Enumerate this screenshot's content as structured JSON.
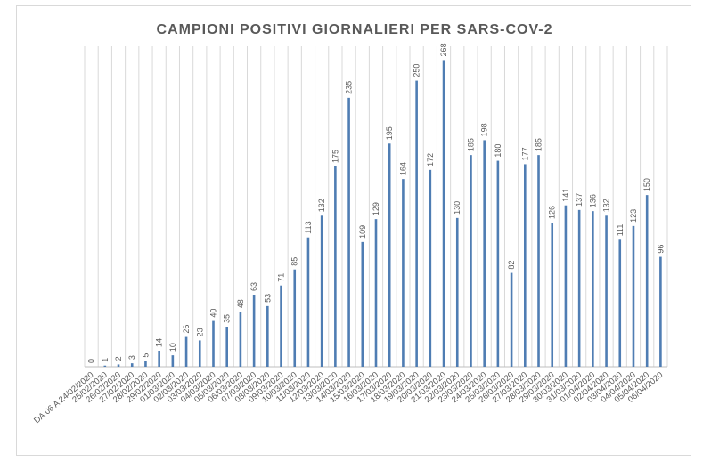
{
  "chart_data": {
    "type": "bar",
    "title": "CAMPIONI POSITIVI GIORNALIERI PER SARS-COV-2",
    "xlabel": "",
    "ylabel": "",
    "ylim": [
      0,
      280
    ],
    "grid": "vertical",
    "colors": {
      "bar": "#4f7db3",
      "grid": "#d9d9d9",
      "text": "#595959"
    },
    "categories": [
      "DA 06 A 24/02/2020",
      "25/02/2020",
      "26/02/2020",
      "27/02/2020",
      "28/02/2020",
      "29/02/2020",
      "01/03/2020",
      "02/03/2020",
      "03/03/2020",
      "04/03/2020",
      "05/03/2020",
      "06/03/2020",
      "07/03/2020",
      "08/03/2020",
      "09/03/2020",
      "10/03/2020",
      "11/03/2020",
      "12/03/2020",
      "13/03/2020",
      "14/03/2020",
      "15/03/2020",
      "16/03/2020",
      "17/03/2020",
      "18/03/2020",
      "19/03/2020",
      "20/03/2020",
      "21/03/2020",
      "22/03/2020",
      "23/03/2020",
      "24/03/2020",
      "25/03/2020",
      "26/03/2020",
      "27/03/2020",
      "28/03/2020",
      "29/03/2020",
      "30/03/2020",
      "31/03/2020",
      "01/04/2020",
      "02/04/2020",
      "03/04/2020",
      "04/04/2020",
      "05/04/2020",
      "06/04/2020"
    ],
    "values": [
      0,
      1,
      2,
      3,
      5,
      14,
      10,
      26,
      23,
      40,
      35,
      48,
      63,
      53,
      71,
      85,
      113,
      132,
      175,
      235,
      109,
      129,
      195,
      164,
      250,
      172,
      268,
      130,
      185,
      198,
      180,
      82,
      177,
      185,
      126,
      141,
      137,
      136,
      132,
      111,
      123,
      150,
      96
    ]
  }
}
